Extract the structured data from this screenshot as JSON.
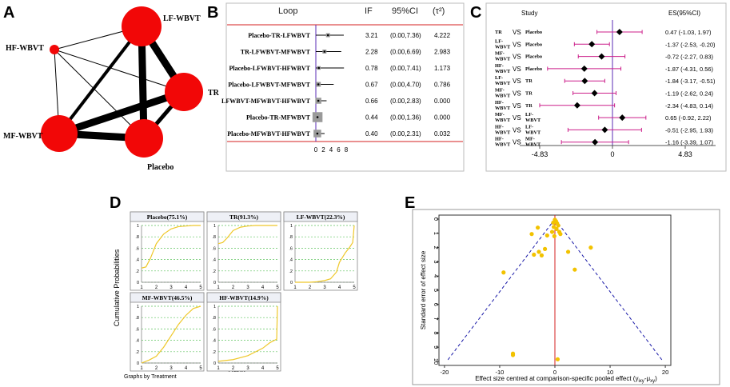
{
  "panel_labels": [
    "A",
    "B",
    "C",
    "D",
    "E"
  ],
  "chart_data": [
    {
      "type": "network",
      "panel": "A",
      "nodes": [
        {
          "name": "LF-WBVT",
          "size": "large"
        },
        {
          "name": "HF-WBVT",
          "size": "small"
        },
        {
          "name": "TR",
          "size": "large"
        },
        {
          "name": "MF-WBVT",
          "size": "large"
        },
        {
          "name": "Placebo",
          "size": "large"
        }
      ],
      "edges": [
        {
          "from": "LF-WBVT",
          "to": "TR",
          "weight": "thick"
        },
        {
          "from": "LF-WBVT",
          "to": "Placebo",
          "weight": "thick"
        },
        {
          "from": "MF-WBVT",
          "to": "TR",
          "weight": "thick"
        },
        {
          "from": "MF-WBVT",
          "to": "Placebo",
          "weight": "thick"
        },
        {
          "from": "TR",
          "to": "Placebo",
          "weight": "medium"
        },
        {
          "from": "LF-WBVT",
          "to": "MF-WBVT",
          "weight": "medium"
        },
        {
          "from": "HF-WBVT",
          "to": "LF-WBVT",
          "weight": "thin"
        },
        {
          "from": "HF-WBVT",
          "to": "MF-WBVT",
          "weight": "thin"
        },
        {
          "from": "HF-WBVT",
          "to": "Placebo",
          "weight": "thin"
        },
        {
          "from": "HF-WBVT",
          "to": "TR",
          "weight": "thin"
        }
      ]
    },
    {
      "type": "table",
      "panel": "B",
      "headers": [
        "Loop",
        "IF",
        "95%CI",
        "(τ²)"
      ],
      "rows": [
        {
          "loop": "Placebo-TR-LFWBVT",
          "if": "3.21",
          "ci": "(0.00,7.36)",
          "tau2": "4.222",
          "point": 3.21,
          "lo": 0.0,
          "hi": 7.36,
          "box": 0.4
        },
        {
          "loop": "TR-LFWBVT-MFWBVT",
          "if": "2.28",
          "ci": "(0.00,6.69)",
          "tau2": "2.983",
          "point": 2.28,
          "lo": 0.0,
          "hi": 6.69,
          "box": 0.4
        },
        {
          "loop": "Placebo-LFWBVT-HFWBVT",
          "if": "0.78",
          "ci": "(0.00,7.41)",
          "tau2": "1.173",
          "point": 0.78,
          "lo": 0.0,
          "hi": 7.41,
          "box": 0.3
        },
        {
          "loop": "Placebo-LFWBVT-MFWBVT",
          "if": "0.67",
          "ci": "(0.00,4.70)",
          "tau2": "0.786",
          "point": 0.67,
          "lo": 0.0,
          "hi": 4.7,
          "box": 0.6
        },
        {
          "loop": "LFWBVT-MFWBVT-HFWBVT",
          "if": "0.66",
          "ci": "(0.00,2.83)",
          "tau2": "0.000",
          "point": 0.66,
          "lo": 0.0,
          "hi": 2.83,
          "box": 0.9
        },
        {
          "loop": "Placebo-TR-MFWBVT",
          "if": "0.44",
          "ci": "(0.00,1.36)",
          "tau2": "0.000",
          "point": 0.44,
          "lo": 0.0,
          "hi": 1.36,
          "box": 1.9
        },
        {
          "loop": "Placebo-MFWBVT-HFWBVT",
          "if": "0.40",
          "ci": "(0.00,2.31)",
          "tau2": "0.032",
          "point": 0.4,
          "lo": 0.0,
          "hi": 2.31,
          "box": 1.3
        }
      ],
      "x_ticks": [
        "0",
        "2",
        "4",
        "6",
        "8"
      ],
      "xlim": [
        0,
        8
      ]
    },
    {
      "type": "forest",
      "panel": "C",
      "col_study": "Study",
      "col_es": "ES(95%CI)",
      "vs_label": "VS",
      "rows": [
        {
          "a": [
            "TR"
          ],
          "b": [
            "Placebo"
          ],
          "es": 0.47,
          "lo": -1.03,
          "hi": 1.97,
          "label": "0.47 (-1.03, 1.97)"
        },
        {
          "a": [
            "LF-",
            "WBVT"
          ],
          "b": [
            "Placebo"
          ],
          "es": -1.37,
          "lo": -2.53,
          "hi": -0.2,
          "label": "-1.37 (-2.53, -0.20)"
        },
        {
          "a": [
            "MF-",
            "WBVT"
          ],
          "b": [
            "Placebo"
          ],
          "es": -0.72,
          "lo": -2.27,
          "hi": 0.83,
          "label": "-0.72 (-2.27, 0.83)"
        },
        {
          "a": [
            "HF-",
            "WBVT"
          ],
          "b": [
            "Placebo"
          ],
          "es": -1.87,
          "lo": -4.31,
          "hi": 0.56,
          "label": "-1.87 (-4.31, 0.56)"
        },
        {
          "a": [
            "LF-",
            "WBVT"
          ],
          "b": [
            "TR"
          ],
          "es": -1.84,
          "lo": -3.17,
          "hi": -0.51,
          "label": "-1.84 (-3.17, -0.51)"
        },
        {
          "a": [
            "MF-",
            "WBVT"
          ],
          "b": [
            "TR"
          ],
          "es": -1.19,
          "lo": -2.62,
          "hi": 0.24,
          "label": "-1.19 (-2.62, 0.24)"
        },
        {
          "a": [
            "HF-",
            "WBVT"
          ],
          "b": [
            "TR"
          ],
          "es": -2.34,
          "lo": -4.83,
          "hi": 0.14,
          "label": "-2.34 (-4.83, 0.14)"
        },
        {
          "a": [
            "MF-",
            "WBVT"
          ],
          "b": [
            "LF-",
            "WBVT"
          ],
          "es": 0.65,
          "lo": -0.92,
          "hi": 2.22,
          "label": "0.65 (-0.92, 2.22)"
        },
        {
          "a": [
            "HF-",
            "WBVT"
          ],
          "b": [
            "LF-",
            "WBVT"
          ],
          "es": -0.51,
          "lo": -2.95,
          "hi": 1.93,
          "label": "-0.51 (-2.95, 1.93)"
        },
        {
          "a": [
            "HF-",
            "WBVT"
          ],
          "b": [
            "MF-",
            "WBVT"
          ],
          "es": -1.16,
          "lo": -3.39,
          "hi": 1.07,
          "label": "-1.16 (-3.39, 1.07)"
        }
      ],
      "x_ticks": [
        "-4.83",
        "0",
        "4.83"
      ],
      "xlim": [
        -4.83,
        4.83
      ]
    },
    {
      "type": "line",
      "panel": "D",
      "ylabel": "Cumulative Probabilities",
      "xlabel": "Rank",
      "footer": "Graphs by Treatment",
      "x_ticks": [
        "1",
        "2",
        "3",
        "4",
        "5"
      ],
      "y_ticks": [
        "0",
        ".2",
        ".4",
        ".6",
        ".8",
        "1"
      ],
      "facets": [
        {
          "title": "Placebo(75.1%)",
          "x": [
            1,
            1.3,
            1.6,
            2,
            2.5,
            3,
            3.5,
            4,
            4.5,
            5
          ],
          "y": [
            0.25,
            0.27,
            0.42,
            0.68,
            0.85,
            0.94,
            0.98,
            0.99,
            1.0,
            1.0
          ]
        },
        {
          "title": "TR(91.3%)",
          "x": [
            1,
            1.3,
            1.6,
            2,
            2.5,
            3,
            3.5,
            4,
            5
          ],
          "y": [
            0.68,
            0.7,
            0.78,
            0.91,
            0.97,
            0.99,
            1.0,
            1.0,
            1.0
          ]
        },
        {
          "title": "LF-WBVT(22.3%)",
          "x": [
            1,
            2,
            2.5,
            3,
            3.4,
            3.8,
            4,
            4.4,
            4.7,
            4.9,
            5
          ],
          "y": [
            0.0,
            0.0,
            0.01,
            0.03,
            0.06,
            0.18,
            0.35,
            0.52,
            0.62,
            0.7,
            1.0
          ]
        },
        {
          "title": "MF-WBVT(46.5%)",
          "x": [
            1,
            1.5,
            2,
            2.5,
            3,
            3.5,
            4,
            4.5,
            5
          ],
          "y": [
            0.0,
            0.05,
            0.12,
            0.28,
            0.48,
            0.68,
            0.84,
            0.96,
            1.0
          ]
        },
        {
          "title": "HF-WBVT(14.9%)",
          "x": [
            1,
            2,
            3,
            4,
            4.5,
            4.8,
            4.95,
            5
          ],
          "y": [
            0.03,
            0.06,
            0.13,
            0.26,
            0.36,
            0.4,
            0.42,
            1.0
          ]
        }
      ]
    },
    {
      "type": "scatter",
      "panel": "E",
      "ylabel": "Standard error of effect size",
      "xlabel": "Effect size centred at comparison-specific pooled effect (y",
      "xlabel_sub1": "ixy",
      "xlabel_mid": "-μ",
      "xlabel_sub2": "xy",
      "xlabel_end": ")",
      "x_ticks": [
        "-20",
        "-10",
        "0",
        "10",
        "20"
      ],
      "y_ticks": [
        "0",
        "1",
        "2",
        "3",
        "4",
        "5",
        "6",
        "7",
        "8",
        "9",
        "10"
      ],
      "xlim": [
        -21,
        21
      ],
      "ylim": [
        0,
        10
      ],
      "funnel_apex": [
        0,
        0
      ],
      "funnel_base": [
        [
          -19.6,
          10
        ],
        [
          19.6,
          10
        ]
      ],
      "points": [
        {
          "x": 0,
          "y": 0.05
        },
        {
          "x": 0.2,
          "y": 0.15
        },
        {
          "x": -0.3,
          "y": 0.25
        },
        {
          "x": 0.4,
          "y": 0.3
        },
        {
          "x": -0.2,
          "y": 0.55
        },
        {
          "x": 0.6,
          "y": 0.45
        },
        {
          "x": 0.3,
          "y": 0.7
        },
        {
          "x": -0.5,
          "y": 0.9
        },
        {
          "x": 0.8,
          "y": 0.9
        },
        {
          "x": 1.0,
          "y": 1.05
        },
        {
          "x": -0.1,
          "y": 1.2
        },
        {
          "x": -3.1,
          "y": 0.6
        },
        {
          "x": -4.2,
          "y": 1.05
        },
        {
          "x": -1.4,
          "y": 1.15
        },
        {
          "x": -1.8,
          "y": 2.1
        },
        {
          "x": -2.9,
          "y": 2.3
        },
        {
          "x": -3.8,
          "y": 2.5
        },
        {
          "x": -2.4,
          "y": 2.55
        },
        {
          "x": -9.3,
          "y": 3.75
        },
        {
          "x": 2.4,
          "y": 2.3
        },
        {
          "x": 6.5,
          "y": 2.0
        },
        {
          "x": 3.6,
          "y": 3.55
        },
        {
          "x": -7.6,
          "y": 9.45
        },
        {
          "x": -7.6,
          "y": 9.55
        },
        {
          "x": 0.5,
          "y": 9.85
        }
      ]
    }
  ],
  "colors": {
    "node": "#f20707",
    "pooled": "#d62020",
    "funnel": "#1a1aa8",
    "point": "#f2c200",
    "forest_ci": "#cc1f8a",
    "forest_ref": "#5a2bb5",
    "grid": "#5fc35f",
    "curve": "#efc82a"
  }
}
